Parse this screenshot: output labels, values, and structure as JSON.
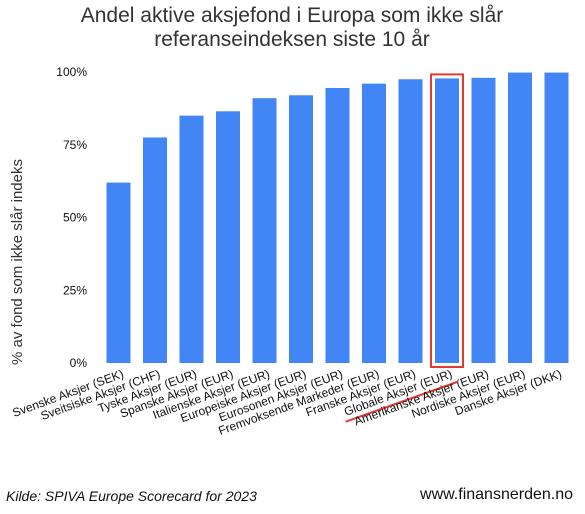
{
  "chart_data": {
    "type": "bar",
    "title": [
      "Andel aktive aksjefond i Europa som ikke slår",
      "referanseindeksen siste 10 år"
    ],
    "ylabel": "% av fond som ikke slår indeks",
    "xlabel": "",
    "ylim": [
      0,
      100
    ],
    "yticks": [
      0,
      25,
      50,
      75,
      100
    ],
    "ytick_labels": [
      "0%",
      "25%",
      "50%",
      "75%",
      "100%"
    ],
    "grid": false,
    "categories": [
      "Svenske Aksjer (SEK)",
      "Sveitsiske Aksjer (CHF)",
      "Tyske Aksjer (EUR)",
      "Spanske Aksjer (EUR)",
      "Italienske Aksjer (EUR)",
      "Europeiske Aksjer (EUR)",
      "Eurosonen Aksjer (EUR)",
      "Fremvoksende Markeder (EUR)",
      "Franske Aksjer (EUR)",
      "Globale Aksjer (EUR)",
      "Amerikanske Aksjer (EUR)",
      "Nordiske Aksjer (EUR)",
      "Danske Aksjer (DKK)"
    ],
    "values": [
      62,
      77.5,
      85,
      86.5,
      91,
      92,
      94.5,
      96,
      97.5,
      97.8,
      98,
      99.8,
      99.8
    ],
    "highlight_index": 9,
    "bar_color": "#4285f4",
    "highlight_color": "#e53935"
  },
  "footer": {
    "source": "Kilde: SPIVA Europe Scorecard for 2023",
    "website": "www.finansnerden.no"
  }
}
